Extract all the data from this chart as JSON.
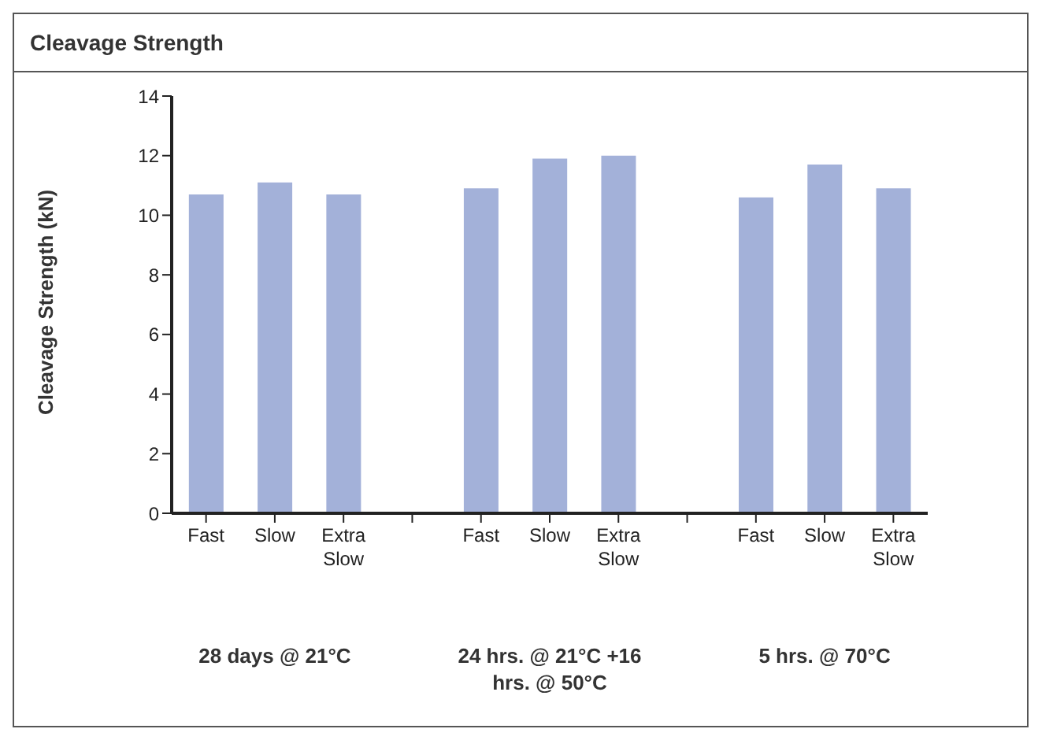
{
  "chart_data": {
    "type": "bar",
    "title": "Cleavage Strength",
    "ylabel": "Cleavage Strength (kN)",
    "categories": [
      "Fast",
      "Slow",
      "Extra Slow",
      null,
      "Fast",
      "Slow",
      "Extra Slow",
      null,
      "Fast",
      "Slow",
      "Extra Slow"
    ],
    "values": [
      10.7,
      11.1,
      10.7,
      null,
      10.9,
      11.9,
      12.0,
      null,
      10.6,
      11.7,
      10.9
    ],
    "color": "#a3b1d9",
    "ylim": [
      0,
      14
    ],
    "yticks": [
      0,
      2,
      4,
      6,
      8,
      10,
      12,
      14
    ],
    "grid": false,
    "legend": false,
    "annotations": [
      "28 days @ 21°C",
      "24 hrs. @ 21°C +16 hrs. @ 50°C",
      "5 hrs. @ 70°C"
    ]
  }
}
